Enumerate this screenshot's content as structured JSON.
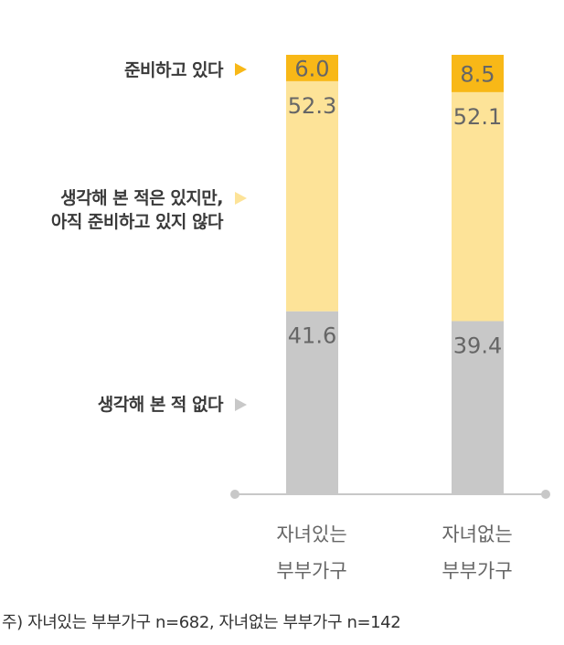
{
  "chart_data": {
    "type": "bar",
    "stacked": true,
    "categories": [
      "자녀있는 부부가구",
      "자녀없는 부부가구"
    ],
    "category_lines": [
      [
        "자녀있는",
        "부부가구"
      ],
      [
        "자녀없는",
        "부부가구"
      ]
    ],
    "series": [
      {
        "name": "생각해 본 적 없다",
        "values": [
          41.6,
          39.4
        ],
        "color": "#c8c8c8",
        "arrow_color": "#c8c8c8"
      },
      {
        "name": "생각해 본 적은 있지만, 아직 준비하고 있지 않다",
        "lines": [
          "생각해 본 적은 있지만,",
          "아직 준비하고 있지 않다"
        ],
        "values": [
          52.3,
          52.1
        ],
        "color": "#fde398",
        "arrow_color": "#fde398"
      },
      {
        "name": "준비하고 있다",
        "values": [
          6.0,
          8.5
        ],
        "color": "#f8b817",
        "arrow_color": "#f8b817"
      }
    ],
    "value_labels": [
      [
        "41.6",
        "39.4"
      ],
      [
        "52.3",
        "52.1"
      ],
      [
        "6.0",
        "8.5"
      ]
    ],
    "ylim": [
      0,
      100
    ],
    "grid": false,
    "legend_placement": "left"
  },
  "footnote": "주) 자녀있는 부부가구 n=682, 자녀없는 부부가구 n=142"
}
